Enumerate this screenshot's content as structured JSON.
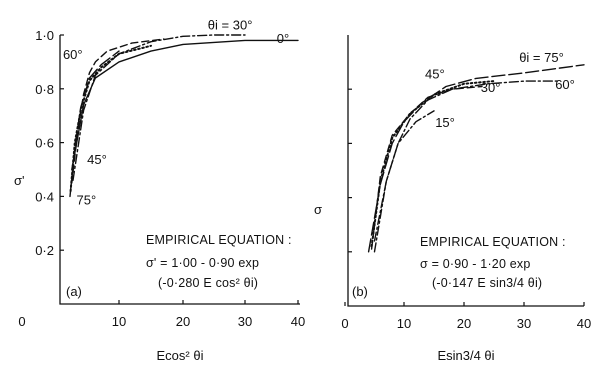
{
  "chart_data": [
    {
      "type": "line",
      "panel_label": "(a)",
      "xlabel": "Ecos² θi",
      "ylabel": "σ'",
      "xlim": [
        0,
        40
      ],
      "ylim": [
        0,
        1.0
      ],
      "x_ticks": [
        "0",
        "10",
        "20",
        "30",
        "40"
      ],
      "y_ticks": [
        "0·2",
        "0·4",
        "0·6",
        "0·8",
        "1·0"
      ],
      "series": [
        {
          "name": "0°",
          "dash": "solid",
          "x": [
            2,
            4,
            6,
            10,
            15,
            20,
            30,
            40
          ],
          "y": [
            0.5,
            0.74,
            0.84,
            0.9,
            0.94,
            0.965,
            0.98,
            0.98
          ]
        },
        {
          "name": "θi = 30°",
          "dash": "dashdot",
          "x": [
            2.2,
            4,
            6,
            10,
            15,
            20,
            25,
            30
          ],
          "y": [
            0.46,
            0.72,
            0.85,
            0.93,
            0.975,
            0.995,
            1.0,
            1.0
          ]
        },
        {
          "name": "60°",
          "dash": "dashed",
          "x": [
            2,
            3,
            4,
            5,
            6,
            8,
            12,
            17
          ],
          "y": [
            0.45,
            0.64,
            0.78,
            0.86,
            0.9,
            0.94,
            0.97,
            0.985
          ]
        },
        {
          "name": "45°",
          "dash": "dotted",
          "x": [
            1.8,
            2.5,
            3.5,
            5,
            7,
            10,
            15
          ],
          "y": [
            0.42,
            0.6,
            0.72,
            0.83,
            0.88,
            0.93,
            0.96
          ]
        },
        {
          "name": "75°",
          "dash": "longdash",
          "x": [
            1.7,
            2.5,
            3.5,
            5,
            7,
            10
          ],
          "y": [
            0.4,
            0.58,
            0.73,
            0.84,
            0.89,
            0.94
          ]
        }
      ],
      "annotations": [
        {
          "text": "θi = 30°",
          "x": 24,
          "y": 1.02
        },
        {
          "text": "0°",
          "x": 36,
          "y": 0.97
        },
        {
          "text": "60°",
          "x": 0.5,
          "y": 0.91
        },
        {
          "text": "45°",
          "x": 4.6,
          "y": 0.52
        },
        {
          "text": "75°",
          "x": 2.8,
          "y": 0.37
        }
      ],
      "equation": [
        "EMPIRICAL EQUATION :",
        "σ' = 1·00 - 0·90 exp",
        "(-0·280 E cos² θi)"
      ]
    },
    {
      "type": "line",
      "panel_label": "(b)",
      "xlabel": "Esin3/4 θi",
      "ylabel": "σ",
      "xlim": [
        0,
        40
      ],
      "ylim": [
        0,
        1.0
      ],
      "x_ticks": [
        "0",
        "10",
        "20",
        "30",
        "40"
      ],
      "series": [
        {
          "name": "θi = 75°",
          "dash": "longdash",
          "x": [
            4,
            6,
            8,
            10,
            13,
            17,
            22,
            30,
            40
          ],
          "y": [
            0.2,
            0.45,
            0.6,
            0.68,
            0.75,
            0.81,
            0.84,
            0.86,
            0.89
          ]
        },
        {
          "name": "60°",
          "dash": "dashdot",
          "x": [
            5,
            7,
            9,
            11,
            14,
            18,
            24,
            30,
            36
          ],
          "y": [
            0.24,
            0.46,
            0.6,
            0.69,
            0.76,
            0.8,
            0.82,
            0.83,
            0.83
          ]
        },
        {
          "name": "45°",
          "dash": "dotted",
          "x": [
            4.5,
            6,
            8,
            11,
            15,
            20,
            25
          ],
          "y": [
            0.22,
            0.46,
            0.62,
            0.71,
            0.78,
            0.82,
            0.83
          ]
        },
        {
          "name": "30°",
          "dash": "dashed",
          "x": [
            4.5,
            6,
            8,
            11,
            14,
            18,
            23
          ],
          "y": [
            0.21,
            0.48,
            0.63,
            0.71,
            0.77,
            0.8,
            0.81
          ]
        },
        {
          "name": "15°",
          "dash": "dashdot",
          "x": [
            5,
            7,
            9,
            12,
            15
          ],
          "y": [
            0.2,
            0.46,
            0.6,
            0.68,
            0.72
          ]
        }
      ],
      "annotations": [
        {
          "text": "θi = 75°",
          "x": 29.2,
          "y": 0.9
        },
        {
          "text": "45°",
          "x": 13.5,
          "y": 0.84
        },
        {
          "text": "30°",
          "x": 22.8,
          "y": 0.79
        },
        {
          "text": "60°",
          "x": 35.2,
          "y": 0.8
        },
        {
          "text": "15°",
          "x": 15.2,
          "y": 0.66
        }
      ],
      "equation": [
        "EMPIRICAL EQUATION :",
        "σ = 0·90 - 1·20 exp",
        "(-0·147 E sin3/4 θi)"
      ]
    }
  ]
}
